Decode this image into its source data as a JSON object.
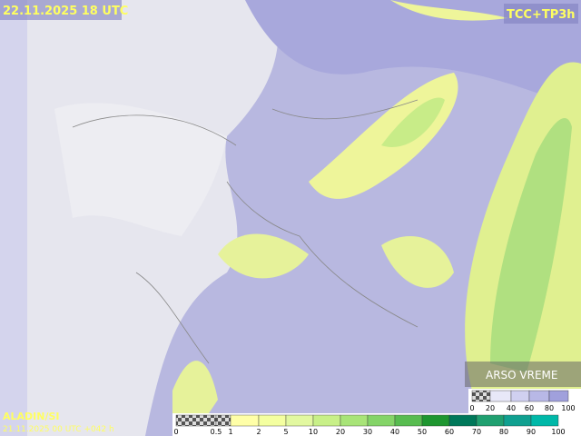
{
  "header": {
    "valid_time": "22.11.2025 18 UTC",
    "product": "TCC+TP3h"
  },
  "footer": {
    "model": "ALADIN/SI",
    "run": "21.11.2025 00 UTC +042 h",
    "brand": "ARSO VREME"
  },
  "precip_legend": {
    "labels": [
      "0",
      "0.5",
      "1",
      "2",
      "5",
      "10",
      "20",
      "30",
      "40",
      "50",
      "60",
      "70",
      "80",
      "90",
      "100"
    ]
  },
  "cloud_legend": {
    "labels": [
      "0",
      "20",
      "40",
      "60",
      "80",
      "100"
    ]
  }
}
